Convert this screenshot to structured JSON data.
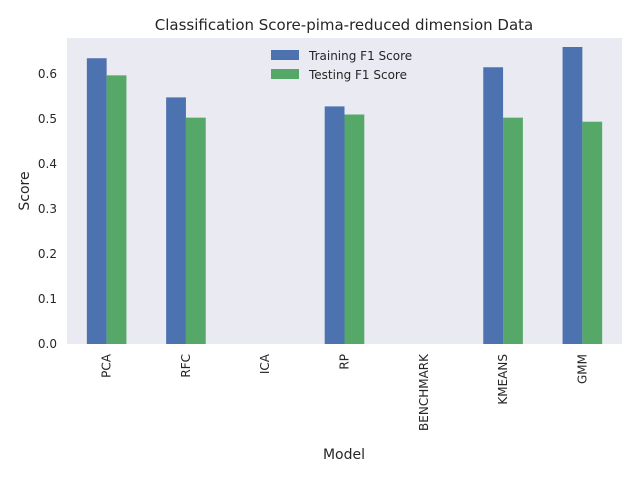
{
  "chart_data": {
    "type": "bar",
    "title": "Classification Score-pima-reduced dimension Data",
    "xlabel": "Model",
    "ylabel": "Score",
    "categories": [
      "PCA",
      "RFC",
      "ICA",
      "RP",
      "BENCHMARK",
      "KMEANS",
      "GMM"
    ],
    "series": [
      {
        "name": "Training F1 Score",
        "color": "#4c72b0",
        "values": [
          0.635,
          0.548,
          0,
          0.528,
          0,
          0.615,
          0.66
        ]
      },
      {
        "name": "Testing F1 Score",
        "color": "#55a868",
        "values": [
          0.597,
          0.503,
          0,
          0.51,
          0,
          0.503,
          0.494
        ]
      }
    ],
    "ylim": [
      0,
      0.68
    ],
    "yticks": [
      "0.0",
      "0.1",
      "0.2",
      "0.3",
      "0.4",
      "0.5",
      "0.6"
    ],
    "grid": false,
    "legend_position": "top-center",
    "background": "#eaeaf2"
  }
}
